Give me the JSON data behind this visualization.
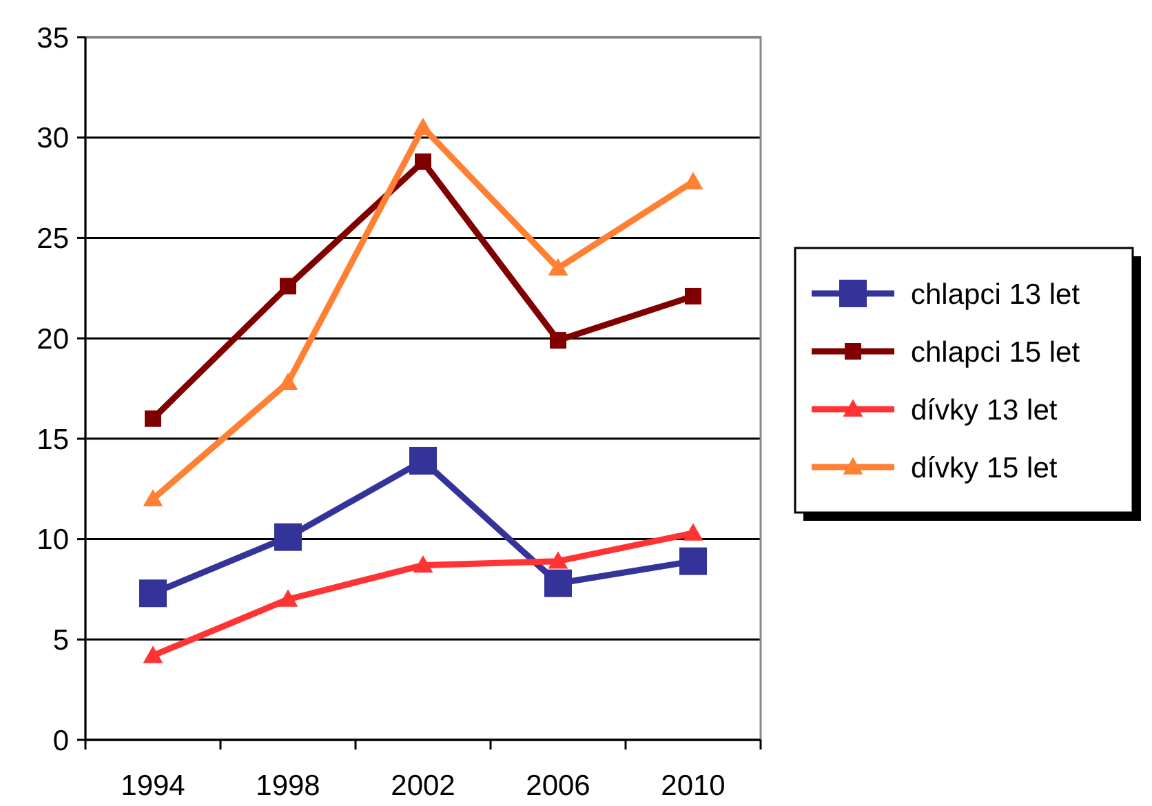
{
  "chart_data": {
    "type": "line",
    "categories": [
      "1994",
      "1998",
      "2002",
      "2006",
      "2010"
    ],
    "ylim": [
      0,
      35
    ],
    "yticks": [
      0,
      5,
      10,
      15,
      20,
      25,
      30,
      35
    ],
    "grid": "y",
    "legend": "right",
    "series": [
      {
        "name": "chlapci 13 let",
        "color": "#333399",
        "marker": "square",
        "values": [
          7.3,
          10.1,
          13.9,
          7.8,
          8.9
        ]
      },
      {
        "name": "chlapci 15 let",
        "color": "#800000",
        "marker": "square",
        "values": [
          16.0,
          22.6,
          28.8,
          19.9,
          22.1
        ]
      },
      {
        "name": "dívky 13 let",
        "color": "#ff3333",
        "marker": "triangle",
        "values": [
          4.2,
          7.0,
          8.7,
          8.9,
          10.3
        ]
      },
      {
        "name": "dívky 15 let",
        "color": "#ff8033",
        "marker": "triangle",
        "values": [
          12.0,
          17.8,
          30.5,
          23.5,
          27.8
        ]
      }
    ]
  }
}
